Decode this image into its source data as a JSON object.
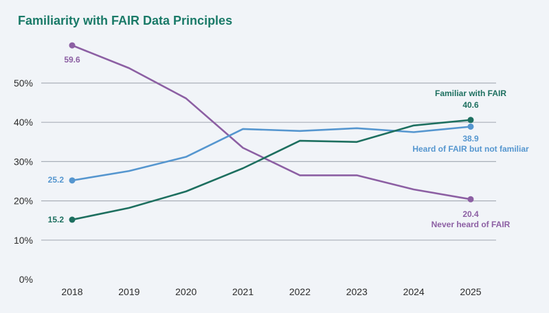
{
  "chart_data": {
    "type": "line",
    "title": "Familiarity with FAIR Data Principles",
    "xlabel": "",
    "ylabel": "",
    "categories": [
      "2018",
      "2019",
      "2020",
      "2021",
      "2022",
      "2023",
      "2024",
      "2025"
    ],
    "ylim": [
      0,
      50
    ],
    "yticks": [
      0,
      10,
      20,
      30,
      40,
      50
    ],
    "ytick_labels": [
      "0%",
      "10%",
      "20%",
      "30%",
      "40%",
      "50%"
    ],
    "grid": true,
    "series": [
      {
        "name": "Never heard of FAIR",
        "color": "#8c5fa3",
        "values": [
          59.6,
          53.8,
          46.1,
          33.5,
          26.5,
          26.5,
          22.9,
          20.4
        ],
        "start_label": "59.6",
        "end_label": "20.4"
      },
      {
        "name": "Heard of FAIR but not familiar",
        "color": "#5596cf",
        "values": [
          25.2,
          27.6,
          31.2,
          38.3,
          37.8,
          38.5,
          37.5,
          38.9
        ],
        "start_label": "25.2",
        "end_label": "38.9"
      },
      {
        "name": "Familiar with FAIR",
        "color": "#1d6f5f",
        "values": [
          15.2,
          18.2,
          22.4,
          28.3,
          35.3,
          35.0,
          39.2,
          40.6
        ],
        "start_label": "15.2",
        "end_label": "40.6"
      }
    ]
  }
}
